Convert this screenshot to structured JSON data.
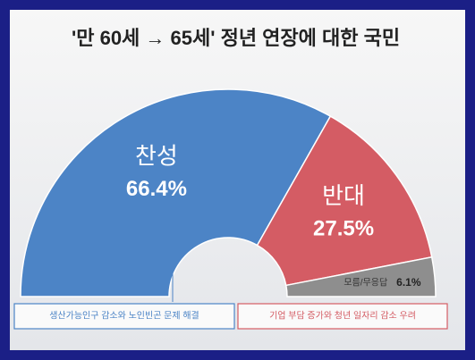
{
  "chart_data": {
    "type": "semi-donut",
    "title": "'만 60세 → 65세' 정년 연장에 대한 국민",
    "categories": [
      "찬성",
      "반대",
      "모름/무응답"
    ],
    "values": [
      66.4,
      27.5,
      6.1
    ],
    "value_labels": [
      "66.4%",
      "27.5%",
      "6.1%"
    ],
    "colors": [
      "#4c84c6",
      "#d45c64",
      "#8e8e8e"
    ],
    "annotations": [
      "생산가능인구 감소와 노인빈곤 문제 해결",
      "기업 부담 증가와 청년 일자리 감소 우려"
    ]
  }
}
